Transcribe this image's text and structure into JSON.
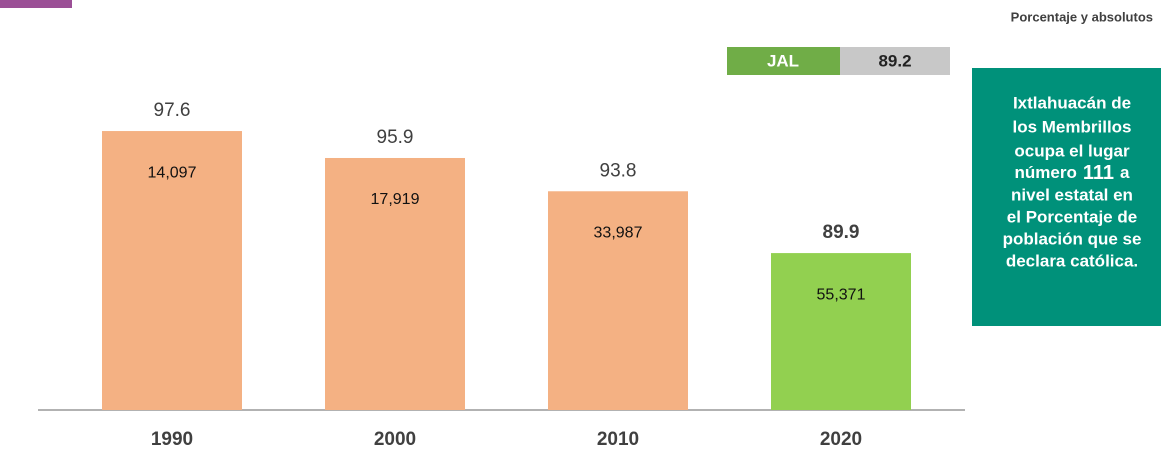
{
  "chart_data": {
    "type": "bar",
    "subtitle": "Porcentaje y absolutos",
    "categories": [
      "1990",
      "2000",
      "2010",
      "2020"
    ],
    "values": [
      97.6,
      95.9,
      93.8,
      89.9
    ],
    "counts": [
      14097,
      17919,
      33987,
      55371
    ],
    "count_labels": [
      "14,097",
      "17,919",
      "33,987",
      "55,371"
    ],
    "colors": [
      "#f4b183",
      "#f4b183",
      "#f4b183",
      "#92d050"
    ],
    "ylim": [
      80,
      100
    ],
    "reference": {
      "label": "JAL",
      "value": 89.2,
      "color": "#70ad47"
    },
    "callout": {
      "lines": [
        "Ixtlahuacán de",
        "los Membrillos",
        "ocupa el lugar"
      ],
      "rank_before": "número",
      "rank": 111,
      "rank_after": "a",
      "lines_after": [
        "nivel estatal en",
        "el Porcentaje de",
        "población que se",
        "declara católica."
      ]
    }
  }
}
